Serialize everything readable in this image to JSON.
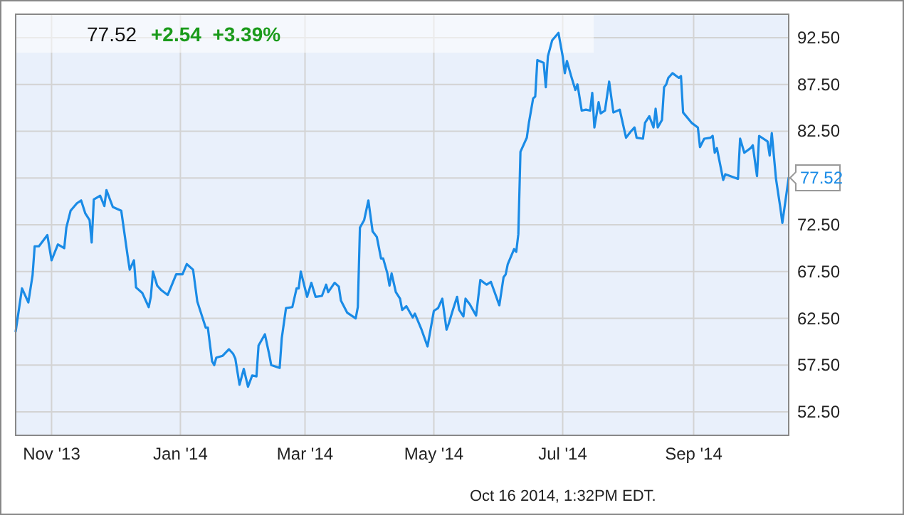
{
  "chart_data": {
    "type": "line",
    "title": "77.52",
    "subtitle": "+2.54  +3.39%",
    "annotations": [
      {
        "text": "77.52",
        "x": "2014-10-16",
        "y": 77.52
      },
      "Oct 16 2014, 1:32PM EDT."
    ],
    "grid": true,
    "marker": "none",
    "line_style": "solid",
    "xlim": [
      "2013-10-15",
      "2014-10-16"
    ],
    "xticks": [
      {
        "value": "2013-11-01",
        "label": "Nov '13"
      },
      {
        "value": "2014-01-01",
        "label": "Jan '14"
      },
      {
        "value": "2014-03-01",
        "label": "Mar '14"
      },
      {
        "value": "2014-05-01",
        "label": "May '14"
      },
      {
        "value": "2014-07-01",
        "label": "Jul '14"
      },
      {
        "value": "2014-09-01",
        "label": "Sep '14"
      }
    ],
    "ylim": [
      50,
      95
    ],
    "yticks": [
      {
        "value": 52.5,
        "label": "52.50"
      },
      {
        "value": 57.5,
        "label": "57.50"
      },
      {
        "value": 62.5,
        "label": "62.50"
      },
      {
        "value": 67.5,
        "label": "67.50"
      },
      {
        "value": 72.5,
        "label": "72.50"
      },
      {
        "value": 77.5,
        "label": null
      },
      {
        "value": 82.5,
        "label": "82.50"
      },
      {
        "value": 87.5,
        "label": "87.50"
      },
      {
        "value": 92.5,
        "label": "92.50"
      }
    ],
    "x": [
      "2013-10-15",
      "2013-10-18",
      "2013-10-21",
      "2013-10-23",
      "2013-10-24",
      "2013-10-26",
      "2013-10-30",
      "2013-11-01",
      "2013-11-04",
      "2013-11-07",
      "2013-11-08",
      "2013-11-10",
      "2013-11-13",
      "2013-11-15",
      "2013-11-17",
      "2013-11-19",
      "2013-11-20",
      "2013-11-21",
      "2013-11-24",
      "2013-11-26",
      "2013-11-27",
      "2013-11-30",
      "2013-12-04",
      "2013-12-07",
      "2013-12-08",
      "2013-12-10",
      "2013-12-11",
      "2013-12-14",
      "2013-12-17",
      "2013-12-18",
      "2013-12-19",
      "2013-12-21",
      "2013-12-23",
      "2013-12-26",
      "2013-12-30",
      "2014-01-02",
      "2014-01-04",
      "2014-01-07",
      "2014-01-09",
      "2014-01-13",
      "2014-01-14",
      "2014-01-16",
      "2014-01-17",
      "2014-01-18",
      "2014-01-21",
      "2014-01-24",
      "2014-01-26",
      "2014-01-27",
      "2014-01-29",
      "2014-01-31",
      "2014-02-02",
      "2014-02-04",
      "2014-02-06",
      "2014-02-07",
      "2014-02-10",
      "2014-02-12",
      "2014-02-13",
      "2014-02-17",
      "2014-02-18",
      "2014-02-20",
      "2014-02-23",
      "2014-02-25",
      "2014-02-26",
      "2014-02-27",
      "2014-03-02",
      "2014-03-04",
      "2014-03-06",
      "2014-03-09",
      "2014-03-11",
      "2014-03-12",
      "2014-03-15",
      "2014-03-17",
      "2014-03-18",
      "2014-03-21",
      "2014-03-25",
      "2014-03-26",
      "2014-03-27",
      "2014-03-29",
      "2014-03-31",
      "2014-04-02",
      "2014-04-04",
      "2014-04-06",
      "2014-04-07",
      "2014-04-09",
      "2014-04-10",
      "2014-04-11",
      "2014-04-13",
      "2014-04-15",
      "2014-04-16",
      "2014-04-18",
      "2014-04-21",
      "2014-04-22",
      "2014-04-25",
      "2014-04-28",
      "2014-05-01",
      "2014-05-03",
      "2014-05-05",
      "2014-05-07",
      "2014-05-08",
      "2014-05-10",
      "2014-05-12",
      "2014-05-13",
      "2014-05-15",
      "2014-05-16",
      "2014-05-18",
      "2014-05-21",
      "2014-05-23",
      "2014-05-26",
      "2014-05-28",
      "2014-06-01",
      "2014-06-03",
      "2014-06-04",
      "2014-06-05",
      "2014-06-08",
      "2014-06-09",
      "2014-06-10",
      "2014-06-11",
      "2014-06-14",
      "2014-06-15",
      "2014-06-17",
      "2014-06-18",
      "2014-06-19",
      "2014-06-22",
      "2014-06-23",
      "2014-06-24",
      "2014-06-26",
      "2014-06-29",
      "2014-07-01",
      "2014-07-02",
      "2014-07-03",
      "2014-07-05",
      "2014-07-07",
      "2014-07-08",
      "2014-07-10",
      "2014-07-12",
      "2014-07-14",
      "2014-07-15",
      "2014-07-16",
      "2014-07-18",
      "2014-07-19",
      "2014-07-21",
      "2014-07-23",
      "2014-07-25",
      "2014-07-28",
      "2014-07-31",
      "2014-08-02",
      "2014-08-04",
      "2014-08-05",
      "2014-08-08",
      "2014-08-09",
      "2014-08-11",
      "2014-08-13",
      "2014-08-14",
      "2014-08-15",
      "2014-08-17",
      "2014-08-18",
      "2014-08-19",
      "2014-08-20",
      "2014-08-22",
      "2014-08-25",
      "2014-08-26",
      "2014-08-27",
      "2014-08-31",
      "2014-09-03",
      "2014-09-04",
      "2014-09-06",
      "2014-09-09",
      "2014-09-10",
      "2014-09-11",
      "2014-09-12",
      "2014-09-15",
      "2014-09-16",
      "2014-09-22",
      "2014-09-23",
      "2014-09-25",
      "2014-09-28",
      "2014-09-29",
      "2014-10-01",
      "2014-10-02",
      "2014-10-06",
      "2014-10-07",
      "2014-10-08",
      "2014-10-10",
      "2014-10-12",
      "2014-10-13",
      "2014-10-16"
    ],
    "series": [
      {
        "color": "#1a8be6",
        "values": [
          61.1,
          65.7,
          64.2,
          67.1,
          70.2,
          70.2,
          71.4,
          68.7,
          70.4,
          70.0,
          72.2,
          74.0,
          74.8,
          75.1,
          73.7,
          73.0,
          70.6,
          75.2,
          75.6,
          74.5,
          76.2,
          74.4,
          74.0,
          69.2,
          67.7,
          68.7,
          65.8,
          65.2,
          63.7,
          64.8,
          67.5,
          66.0,
          65.5,
          65.0,
          67.2,
          67.2,
          68.3,
          67.7,
          64.3,
          61.5,
          61.5,
          57.9,
          57.5,
          58.3,
          58.5,
          59.2,
          58.7,
          58.2,
          55.4,
          57.1,
          55.2,
          56.4,
          56.3,
          59.6,
          60.8,
          58.7,
          57.5,
          57.2,
          60.4,
          63.6,
          63.7,
          65.7,
          65.7,
          67.5,
          64.8,
          66.3,
          64.8,
          64.9,
          66.1,
          65.3,
          66.3,
          65.9,
          64.4,
          63.1,
          62.5,
          63.7,
          72.2,
          73.0,
          75.1,
          71.8,
          71.2,
          68.9,
          68.9,
          67.3,
          66.0,
          67.3,
          65.3,
          64.6,
          63.4,
          63.8,
          62.6,
          63.0,
          61.4,
          59.5,
          63.3,
          63.6,
          64.6,
          61.3,
          61.9,
          63.4,
          64.8,
          63.4,
          62.7,
          64.6,
          64.0,
          62.8,
          66.6,
          66.1,
          66.4,
          63.9,
          66.9,
          67.2,
          68.3,
          69.9,
          69.6,
          71.5,
          80.3,
          81.8,
          83.4,
          86.0,
          86.2,
          90.1,
          89.8,
          87.2,
          90.5,
          92.2,
          93.0,
          90.5,
          88.7,
          90.0,
          88.4,
          86.9,
          87.5,
          84.7,
          84.8,
          84.7,
          86.6,
          82.9,
          85.6,
          84.4,
          84.7,
          87.8,
          84.5,
          84.8,
          81.8,
          82.4,
          82.9,
          81.8,
          81.7,
          83.4,
          84.1,
          82.9,
          84.9,
          82.9,
          83.7,
          87.2,
          87.5,
          88.2,
          88.7,
          88.2,
          88.4,
          84.5,
          83.4,
          82.9,
          80.8,
          81.7,
          81.8,
          82.0,
          80.2,
          80.7,
          77.3,
          77.9,
          77.4,
          81.7,
          80.2,
          80.7,
          81.0,
          77.7,
          82.0,
          81.4,
          79.9,
          82.3,
          77.4,
          74.4,
          72.7,
          77.52
        ]
      }
    ]
  }
}
